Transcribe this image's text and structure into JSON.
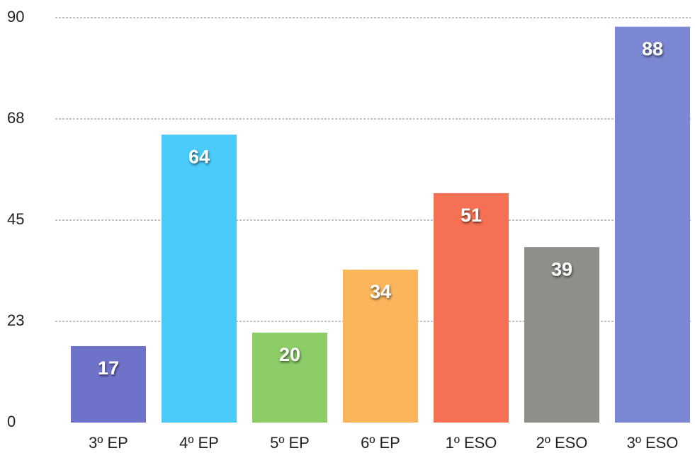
{
  "chart_data": {
    "type": "bar",
    "categories": [
      "3º EP",
      "4º EP",
      "5º EP",
      "6º EP",
      "1º ESO",
      "2º ESO",
      "3º ESO"
    ],
    "values": [
      17,
      64,
      20,
      34,
      51,
      39,
      88
    ],
    "colors": [
      "#6f72c9",
      "#4acbfa",
      "#8ccd68",
      "#fbb55b",
      "#f67053",
      "#8f8f89",
      "#7c87d3"
    ],
    "ylim": [
      0,
      90
    ],
    "yticks": [
      0,
      {
        "value": 22.5,
        "label": "23"
      },
      45,
      {
        "value": 67.5,
        "label": "68"
      },
      90
    ],
    "grid": true
  }
}
